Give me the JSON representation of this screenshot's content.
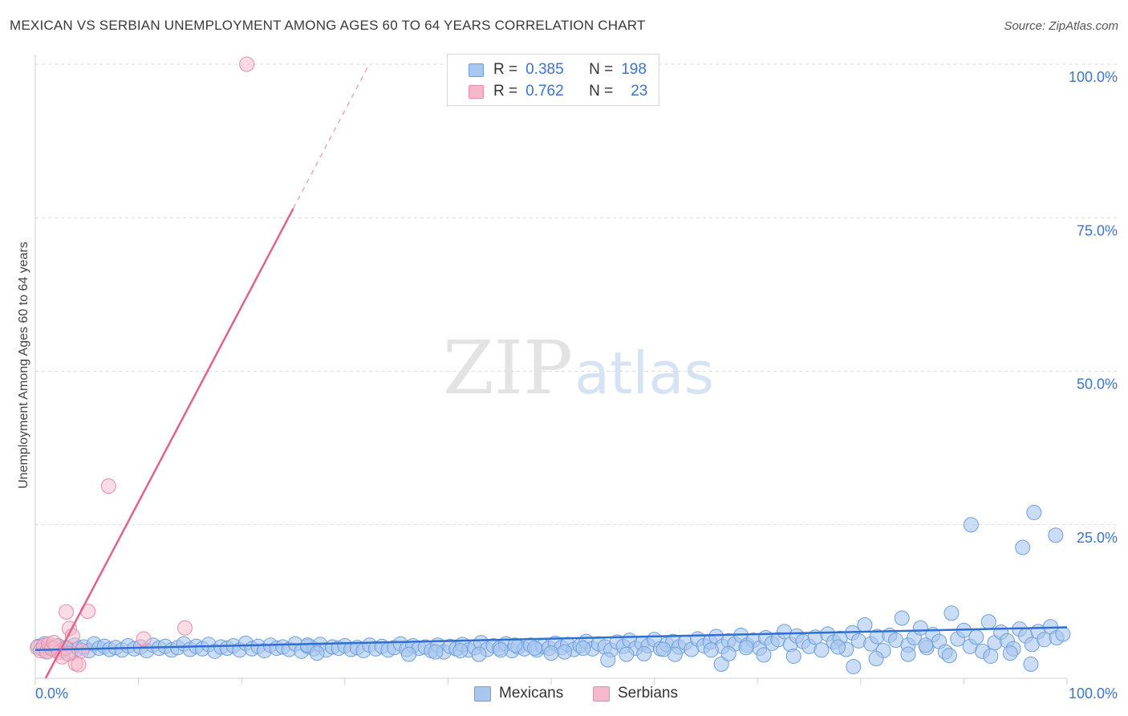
{
  "header": {
    "title": "MEXICAN VS SERBIAN UNEMPLOYMENT AMONG AGES 60 TO 64 YEARS CORRELATION CHART",
    "source": "Source: ZipAtlas.com"
  },
  "watermark": {
    "zip": "ZIP",
    "atlas": "atlas"
  },
  "legend": {
    "mexicans": {
      "r_label": "R =",
      "r_value": "0.385",
      "n_label": "N =",
      "n_value": "198",
      "color": "#a9c7ee"
    },
    "serbians": {
      "r_label": "R =",
      "r_value": "0.762",
      "n_label": "N =",
      "n_value": "23",
      "color": "#f6b9cb"
    }
  },
  "bottom_legend": {
    "mexicans": "Mexicans",
    "serbians": "Serbians"
  },
  "colors": {
    "blue_fill": "#a9c7ee",
    "blue_stroke": "#6d9fdc",
    "blue_line": "#2f6fcf",
    "pink_fill": "#f6b9cb",
    "pink_stroke": "#ea8aa7",
    "pink_line": "#e0628e",
    "tick_label": "#3b74c9",
    "grid": "#d9d9d9"
  },
  "chart_data": {
    "type": "scatter",
    "title": "MEXICAN VS SERBIAN UNEMPLOYMENT AMONG AGES 60 TO 64 YEARS CORRELATION CHART",
    "xlabel": "",
    "ylabel": "Unemployment Among Ages 60 to 64 years",
    "xlim": [
      0,
      100
    ],
    "ylim": [
      0,
      100
    ],
    "x_tick_labels": [
      "0.0%",
      "100.0%"
    ],
    "y_ticks": [
      25,
      50,
      75,
      100
    ],
    "y_tick_labels": [
      "25.0%",
      "50.0%",
      "75.0%",
      "100.0%"
    ],
    "grid": true,
    "series": [
      {
        "name": "Mexicans",
        "r": 0.385,
        "n": 198,
        "trend": {
          "x": [
            0,
            100
          ],
          "y": [
            4.6,
            8.3
          ]
        },
        "points": [
          [
            0.3,
            5.2
          ],
          [
            0.6,
            4.8
          ],
          [
            0.9,
            5.6
          ],
          [
            1.2,
            4.4
          ],
          [
            1.5,
            5.1
          ],
          [
            1.8,
            4.9
          ],
          [
            2.2,
            5.3
          ],
          [
            2.6,
            4.6
          ],
          [
            3.0,
            5.0
          ],
          [
            3.4,
            4.3
          ],
          [
            3.8,
            5.4
          ],
          [
            4.2,
            4.8
          ],
          [
            4.7,
            5.1
          ],
          [
            5.2,
            4.5
          ],
          [
            5.7,
            5.6
          ],
          [
            6.2,
            4.9
          ],
          [
            6.7,
            5.2
          ],
          [
            7.2,
            4.7
          ],
          [
            7.8,
            5.0
          ],
          [
            8.4,
            4.6
          ],
          [
            9.0,
            5.3
          ],
          [
            9.6,
            4.8
          ],
          [
            10.2,
            5.1
          ],
          [
            10.8,
            4.5
          ],
          [
            11.4,
            5.4
          ],
          [
            12.0,
            4.9
          ],
          [
            12.6,
            5.2
          ],
          [
            13.2,
            4.6
          ],
          [
            13.8,
            5.0
          ],
          [
            14.4,
            5.6
          ],
          [
            15.0,
            4.7
          ],
          [
            15.6,
            5.2
          ],
          [
            16.2,
            4.8
          ],
          [
            16.8,
            5.5
          ],
          [
            17.4,
            4.4
          ],
          [
            18.0,
            5.1
          ],
          [
            18.6,
            4.9
          ],
          [
            19.2,
            5.3
          ],
          [
            19.8,
            4.6
          ],
          [
            20.4,
            5.7
          ],
          [
            21.0,
            4.8
          ],
          [
            21.6,
            5.2
          ],
          [
            22.2,
            4.5
          ],
          [
            22.8,
            5.4
          ],
          [
            23.4,
            4.9
          ],
          [
            24.0,
            5.1
          ],
          [
            24.6,
            4.7
          ],
          [
            25.2,
            5.6
          ],
          [
            25.8,
            4.4
          ],
          [
            26.4,
            5.2
          ],
          [
            27.0,
            4.8
          ],
          [
            27.6,
            5.5
          ],
          [
            28.2,
            4.6
          ],
          [
            28.8,
            5.1
          ],
          [
            29.4,
            4.9
          ],
          [
            30.0,
            5.3
          ],
          [
            30.6,
            4.7
          ],
          [
            31.2,
            5.0
          ],
          [
            31.8,
            4.5
          ],
          [
            32.4,
            5.4
          ],
          [
            33.0,
            4.8
          ],
          [
            33.6,
            5.2
          ],
          [
            34.2,
            4.6
          ],
          [
            34.8,
            5.0
          ],
          [
            35.4,
            5.6
          ],
          [
            36.0,
            4.7
          ],
          [
            36.6,
            5.3
          ],
          [
            37.2,
            4.9
          ],
          [
            37.8,
            5.1
          ],
          [
            38.4,
            4.5
          ],
          [
            39.0,
            5.4
          ],
          [
            39.6,
            4.3
          ],
          [
            40.2,
            5.2
          ],
          [
            40.8,
            4.8
          ],
          [
            41.4,
            5.5
          ],
          [
            42.0,
            4.6
          ],
          [
            42.6,
            5.0
          ],
          [
            43.2,
            5.8
          ],
          [
            43.8,
            4.7
          ],
          [
            44.4,
            5.3
          ],
          [
            45.0,
            4.9
          ],
          [
            45.6,
            5.6
          ],
          [
            46.2,
            4.5
          ],
          [
            46.8,
            5.1
          ],
          [
            47.4,
            4.8
          ],
          [
            48.0,
            5.4
          ],
          [
            48.6,
            4.6
          ],
          [
            49.2,
            5.2
          ],
          [
            49.8,
            4.9
          ],
          [
            50.4,
            5.7
          ],
          [
            51.0,
            5.0
          ],
          [
            51.6,
            5.5
          ],
          [
            52.2,
            4.7
          ],
          [
            52.8,
            5.3
          ],
          [
            53.4,
            6.0
          ],
          [
            54.0,
            4.8
          ],
          [
            54.6,
            5.6
          ],
          [
            55.2,
            5.1
          ],
          [
            55.8,
            4.6
          ],
          [
            56.4,
            5.9
          ],
          [
            57.0,
            5.2
          ],
          [
            57.6,
            6.2
          ],
          [
            58.2,
            4.9
          ],
          [
            58.8,
            5.7
          ],
          [
            59.4,
            5.3
          ],
          [
            60.0,
            6.3
          ],
          [
            60.6,
            4.8
          ],
          [
            61.2,
            5.5
          ],
          [
            61.8,
            6.0
          ],
          [
            62.4,
            5.1
          ],
          [
            63.0,
            5.8
          ],
          [
            63.6,
            4.7
          ],
          [
            64.2,
            6.4
          ],
          [
            64.8,
            5.3
          ],
          [
            65.4,
            5.9
          ],
          [
            66.0,
            6.8
          ],
          [
            66.6,
            5.2
          ],
          [
            67.2,
            6.1
          ],
          [
            67.8,
            5.6
          ],
          [
            68.4,
            7.0
          ],
          [
            69.0,
            5.4
          ],
          [
            69.6,
            6.2
          ],
          [
            70.2,
            4.9
          ],
          [
            70.8,
            6.6
          ],
          [
            71.4,
            5.7
          ],
          [
            72.0,
            6.3
          ],
          [
            72.6,
            7.6
          ],
          [
            73.2,
            5.5
          ],
          [
            73.8,
            6.9
          ],
          [
            74.4,
            6.0
          ],
          [
            75.0,
            5.2
          ],
          [
            75.6,
            6.7
          ],
          [
            76.2,
            4.6
          ],
          [
            76.8,
            7.2
          ],
          [
            77.4,
            5.9
          ],
          [
            78.0,
            6.5
          ],
          [
            78.6,
            4.7
          ],
          [
            79.2,
            7.4
          ],
          [
            79.8,
            6.1
          ],
          [
            80.4,
            8.7
          ],
          [
            81.0,
            5.6
          ],
          [
            81.6,
            6.8
          ],
          [
            82.2,
            4.5
          ],
          [
            82.8,
            7.0
          ],
          [
            83.4,
            6.2
          ],
          [
            84.0,
            9.8
          ],
          [
            84.6,
            5.4
          ],
          [
            85.2,
            6.6
          ],
          [
            85.8,
            8.2
          ],
          [
            86.4,
            5.0
          ],
          [
            87.0,
            7.1
          ],
          [
            87.6,
            6.0
          ],
          [
            88.2,
            4.3
          ],
          [
            88.8,
            10.6
          ],
          [
            89.4,
            6.4
          ],
          [
            90.0,
            7.8
          ],
          [
            90.6,
            5.2
          ],
          [
            91.2,
            6.7
          ],
          [
            91.8,
            4.4
          ],
          [
            92.4,
            9.2
          ],
          [
            93.0,
            5.8
          ],
          [
            93.6,
            7.5
          ],
          [
            94.2,
            6.1
          ],
          [
            94.8,
            4.8
          ],
          [
            95.4,
            8.0
          ],
          [
            96.0,
            6.9
          ],
          [
            96.6,
            5.5
          ],
          [
            97.2,
            7.6
          ],
          [
            97.8,
            6.3
          ],
          [
            98.4,
            8.4
          ],
          [
            99.0,
            6.6
          ],
          [
            99.6,
            7.2
          ],
          [
            90.7,
            25.0
          ],
          [
            95.7,
            21.3
          ],
          [
            96.8,
            27.0
          ],
          [
            98.9,
            23.3
          ],
          [
            81.5,
            3.2
          ],
          [
            55.5,
            3.0
          ],
          [
            66.5,
            2.3
          ],
          [
            79.3,
            1.9
          ],
          [
            96.5,
            2.3
          ],
          [
            86.3,
            5.4
          ],
          [
            84.6,
            3.9
          ],
          [
            92.6,
            3.6
          ],
          [
            70.6,
            3.8
          ],
          [
            73.5,
            3.6
          ],
          [
            62.0,
            3.9
          ],
          [
            88.6,
            3.7
          ],
          [
            94.5,
            4.1
          ],
          [
            77.8,
            5.1
          ],
          [
            65.5,
            4.6
          ],
          [
            67.2,
            4.0
          ],
          [
            68.9,
            5.0
          ],
          [
            60.9,
            4.7
          ],
          [
            59.0,
            4.0
          ],
          [
            57.3,
            3.9
          ],
          [
            53.1,
            4.9
          ],
          [
            51.3,
            4.3
          ],
          [
            50.0,
            4.1
          ],
          [
            48.4,
            4.9
          ],
          [
            46.5,
            5.4
          ],
          [
            45.1,
            4.6
          ],
          [
            43.0,
            3.9
          ],
          [
            41.2,
            4.5
          ],
          [
            38.8,
            4.3
          ],
          [
            36.2,
            3.9
          ],
          [
            26.4,
            5.4
          ],
          [
            27.3,
            4.1
          ]
        ]
      },
      {
        "name": "Serbians",
        "r": 0.762,
        "n": 23,
        "trend": {
          "x": [
            1.0,
            25.0
          ],
          "y": [
            0.0,
            76.5
          ]
        },
        "trend_dashed": {
          "x": [
            25.0,
            32.3
          ],
          "y": [
            76.5,
            99.8
          ]
        },
        "points": [
          [
            0.2,
            5.0
          ],
          [
            0.5,
            4.5
          ],
          [
            0.8,
            5.3
          ],
          [
            1.1,
            4.3
          ],
          [
            1.3,
            5.6
          ],
          [
            1.6,
            4.8
          ],
          [
            2.0,
            5.2
          ],
          [
            2.3,
            4.2
          ],
          [
            2.6,
            3.5
          ],
          [
            2.9,
            4.9
          ],
          [
            3.0,
            10.8
          ],
          [
            3.3,
            8.1
          ],
          [
            3.6,
            6.9
          ],
          [
            3.9,
            2.4
          ],
          [
            4.2,
            2.2
          ],
          [
            4.5,
            4.5
          ],
          [
            5.1,
            10.9
          ],
          [
            7.1,
            31.3
          ],
          [
            10.5,
            6.4
          ],
          [
            14.5,
            8.2
          ],
          [
            20.5,
            100.0
          ],
          [
            1.8,
            5.8
          ],
          [
            3.2,
            4.0
          ]
        ]
      }
    ]
  }
}
